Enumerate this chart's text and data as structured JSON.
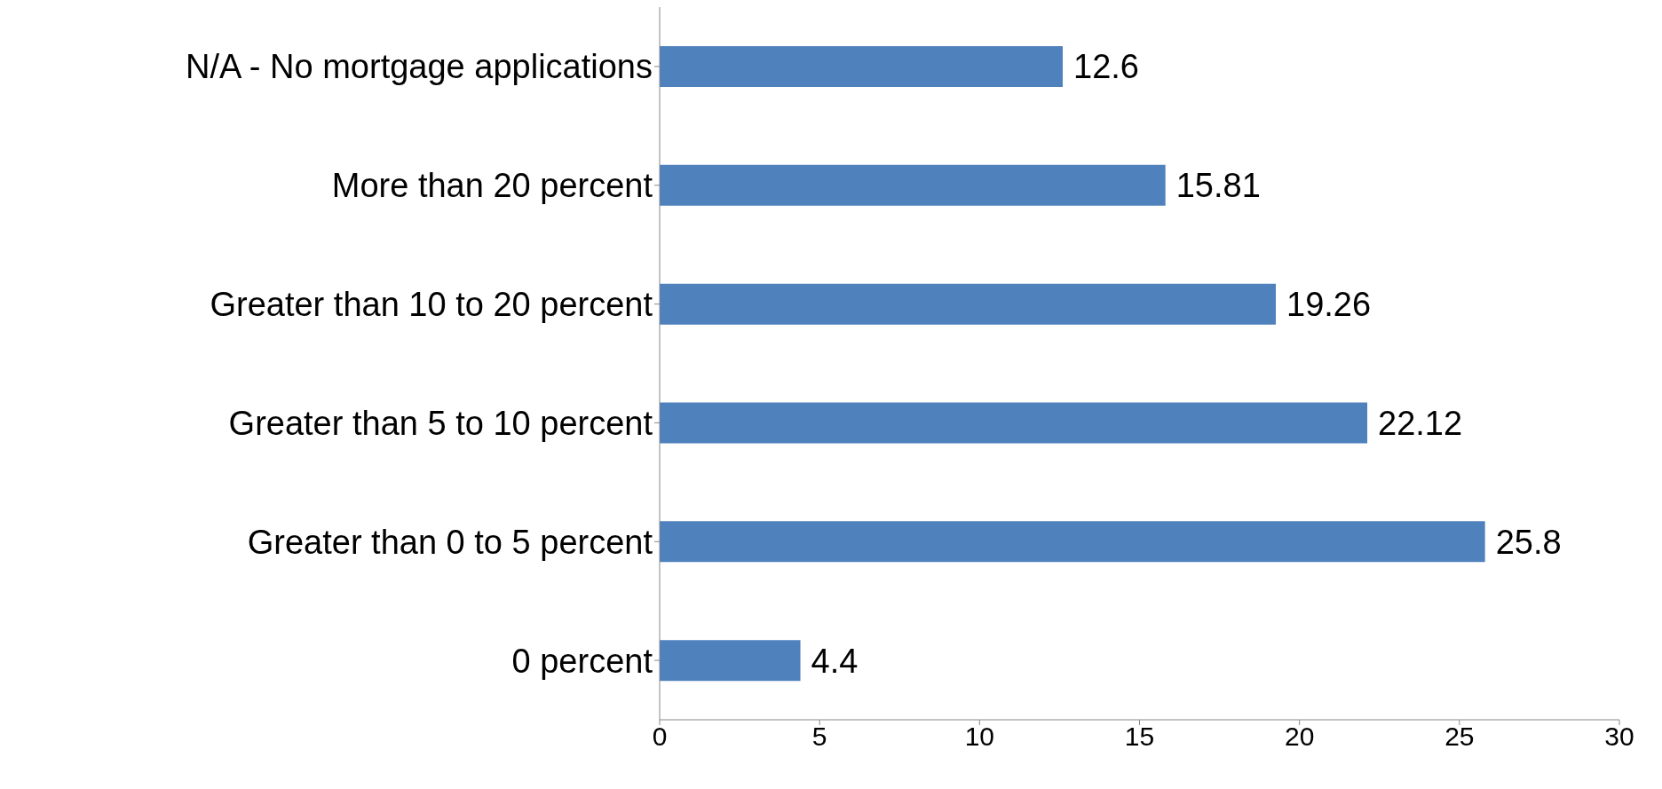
{
  "chart_data": {
    "type": "bar",
    "orientation": "horizontal",
    "categories": [
      "N/A - No mortgage applications",
      "More than 20 percent",
      "Greater than 10 to 20 percent",
      "Greater than 5 to 10 percent",
      "Greater than 0 to 5 percent",
      "0 percent"
    ],
    "values": [
      12.6,
      15.81,
      19.26,
      22.12,
      25.8,
      4.4
    ],
    "color": "#4f81bd",
    "xlim": [
      0,
      30
    ],
    "xticks": [
      0,
      5,
      10,
      15,
      20,
      25,
      30
    ],
    "data_labels": true
  }
}
